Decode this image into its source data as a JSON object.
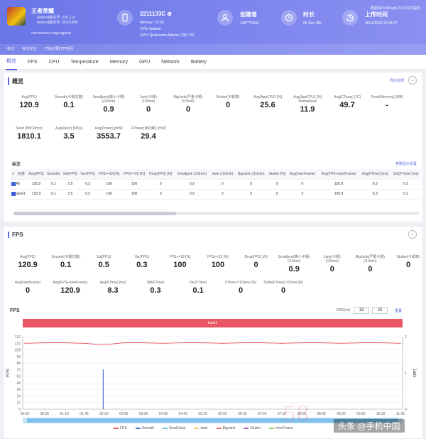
{
  "app": {
    "name": "王者荣耀",
    "android_version_line": "Android版本号: 3.81.1.8",
    "android_version_line2": "Android版本号: 38101808",
    "package": "com.tencent.tmgp.sgame"
  },
  "device": {
    "model": "2211133C ⊕",
    "memory": "Memory: 10.0G",
    "cpu": "CPU: kalama",
    "gpu": "GPU: Qualcomm Adreno (TM) 740"
  },
  "creator": {
    "title": "创建者",
    "value": "130****9152"
  },
  "duration": {
    "title": "时长",
    "value": "0h 11m 38s"
  },
  "upload": {
    "title": "上传时间",
    "value": "30/11/2022 20:13:27"
  },
  "upload_info": "数据由PerfDog(6.3)210520提供",
  "label_bar": {
    "a": "标注",
    "b": "标注标注",
    "c": "开始记录打开时间"
  },
  "tabs": [
    "概览",
    "FPS",
    "CPU",
    "Temperature",
    "Memory",
    "GPU",
    "Network",
    "Battery"
  ],
  "colors": {
    "accent": "#5b66e0",
    "header_start": "#6a76e6",
    "header_end": "#8a90f0",
    "red": "#e85663",
    "fps_line": "#e85663"
  },
  "overview": {
    "title": "概览",
    "export": "导出全部",
    "collapse": "⌄",
    "metrics_row1": [
      {
        "label": "Avg(FPS)",
        "value": "120.9"
      },
      {
        "label": "Smooth(卡顿次数)",
        "value": "0.1"
      },
      {
        "label": "Smalljank(微小卡顿)\n(/10min)",
        "value": "0.9"
      },
      {
        "label": "Jank(卡顿)\n(/10min)",
        "value": "0"
      },
      {
        "label": "BigJank(严重卡顿)\n(/10min)",
        "value": "0"
      },
      {
        "label": "Stutter(卡顿率)",
        "value": "0"
      },
      {
        "label": "Avg(AppCPU) [%]",
        "value": "25.6"
      },
      {
        "label": "Avg(AppCPU) [%]\nNormalized",
        "value": "11.9"
      },
      {
        "label": "Avg(CTemp) [°C]",
        "value": "49.7"
      },
      {
        "label": "Peak(Memory) [MB]",
        "value": "-"
      }
    ],
    "metrics_row2": [
      {
        "label": "Send [KB/10min]",
        "value": "1810.1"
      },
      {
        "label": "Avg(Recv) [KB/s]",
        "value": "3.5"
      },
      {
        "label": "Avg(Power) [mW]",
        "value": "3553.7"
      },
      {
        "label": "FPower(帧功耗) [mW]",
        "value": "29.4"
      }
    ],
    "table_title": "标注",
    "table_link": "参数显示设置",
    "table_headers": [
      "标签",
      "Avg(FPS)",
      "Smooth(",
      "Std(FPS)",
      "Var(FPS)",
      "FPS>=18 [%]",
      "FPS>=25 [%]",
      "Drop(FPS) [/h]",
      "Smalljank (/10min)",
      "Jank (/10min)",
      "BigJank (/10min)",
      "Stutter [%]",
      "Avg(InterFrame)",
      "Avg(FPS+InterFrame)",
      "Avg(FTime) [ms]",
      "Std(FTime) [ms]"
    ],
    "table_rows": [
      [
        "All",
        "120.9",
        "0.1",
        "0.5",
        "0.3",
        "100",
        "100",
        "0",
        "0.9",
        "0",
        "0",
        "0",
        "0",
        "120.9",
        "8.3",
        "0.3"
      ],
      [
        "label1",
        "120.9",
        "0.1",
        "0.5",
        "0.3",
        "100",
        "100",
        "0",
        "0.9",
        "0",
        "0",
        "0",
        "0",
        "120.9",
        "8.3",
        "0.3"
      ]
    ]
  },
  "fps_section": {
    "title": "FPS",
    "collapse": "⌄",
    "metrics_row1": [
      {
        "label": "Avg(FPS)",
        "value": "120.9"
      },
      {
        "label": "Smooth(卡顿次数)",
        "value": "0.1"
      },
      {
        "label": "Std(FPS)",
        "value": "0.5"
      },
      {
        "label": "Var(FPS)",
        "value": "0.3"
      },
      {
        "label": "FPS>=18 [%]",
        "value": "100"
      },
      {
        "label": "FPS>=25 [%]",
        "value": "100"
      },
      {
        "label": "Drop(FPS) [/h]",
        "value": "0"
      },
      {
        "label": "Smalljank(微小卡顿)\n(/10min)",
        "value": "0.9"
      },
      {
        "label": "Jank(卡顿)\n(/10min)",
        "value": "0"
      },
      {
        "label": "BigJank(严重卡顿)\n(/10min)",
        "value": "0"
      },
      {
        "label": "Stutter(卡顿率)",
        "value": "0"
      }
    ],
    "metrics_row2": [
      {
        "label": "Avg(InterFrame)",
        "value": "0"
      },
      {
        "label": "Avg(FPS+InterFrame)",
        "value": "120.9"
      },
      {
        "label": "Avg(FTime) [ms]",
        "value": "8.3"
      },
      {
        "label": "Std(FTime)",
        "value": "0.3"
      },
      {
        "label": "Var(FTime)",
        "value": "0.1"
      },
      {
        "label": "FTime>=100ms [%]",
        "value": "0"
      },
      {
        "label": "Delta(FTime)>100ms [/h]",
        "value": "0"
      }
    ],
    "chart_title": "FPS",
    "fps_filter_label": "FPS(>=)",
    "fps_filter_a": "18",
    "fps_filter_b": "25",
    "fps_filter_link": "重置",
    "label_bar": "label1"
  },
  "chart_data": {
    "type": "line",
    "title": "",
    "ylabel": "FPS",
    "y2label": "Jank",
    "ylim": [
      0,
      132
    ],
    "y_ticks": [
      0,
      12,
      24,
      36,
      48,
      60,
      72,
      84,
      96,
      108,
      120,
      132
    ],
    "y_tick_labels": [
      "0",
      "12",
      "24",
      "36",
      "48",
      "60",
      "72",
      "84",
      "96",
      "108",
      "120",
      "132"
    ],
    "y2lim": [
      0,
      2
    ],
    "y2_ticks": [
      0,
      1,
      2
    ],
    "x": [
      "00:00",
      "00:35",
      "01:10",
      "01:45",
      "02:20",
      "02:55",
      "03:30",
      "04:05",
      "04:40",
      "05:15",
      "05:50",
      "06:25",
      "07:00",
      "07:35",
      "08:10",
      "08:45",
      "09:20",
      "09:55",
      "10:30",
      "11:05"
    ],
    "series": [
      {
        "name": "FPS",
        "color": "#e85663",
        "values": [
          120,
          121,
          121,
          120,
          117,
          121,
          121,
          120,
          121,
          121,
          120,
          121,
          121,
          120,
          121,
          121,
          120,
          121,
          121,
          120
        ]
      },
      {
        "name": "Smalljank",
        "color": "#5470c6",
        "events": [
          {
            "x": "02:20",
            "value": 1
          }
        ]
      }
    ],
    "legend": [
      "FPS",
      "Smooth",
      "SmallJank",
      "Jank",
      "BigJank",
      "Stutter",
      "InterFrame"
    ],
    "legend_colors": [
      "#e85663",
      "#5470c6",
      "#73c0de",
      "#fac858",
      "#ee6666",
      "#9a60b4",
      "#91cc75"
    ],
    "legend_position": "bottom",
    "grid": true
  },
  "watermark": "头条 @手机中国",
  "watermark58": "58"
}
